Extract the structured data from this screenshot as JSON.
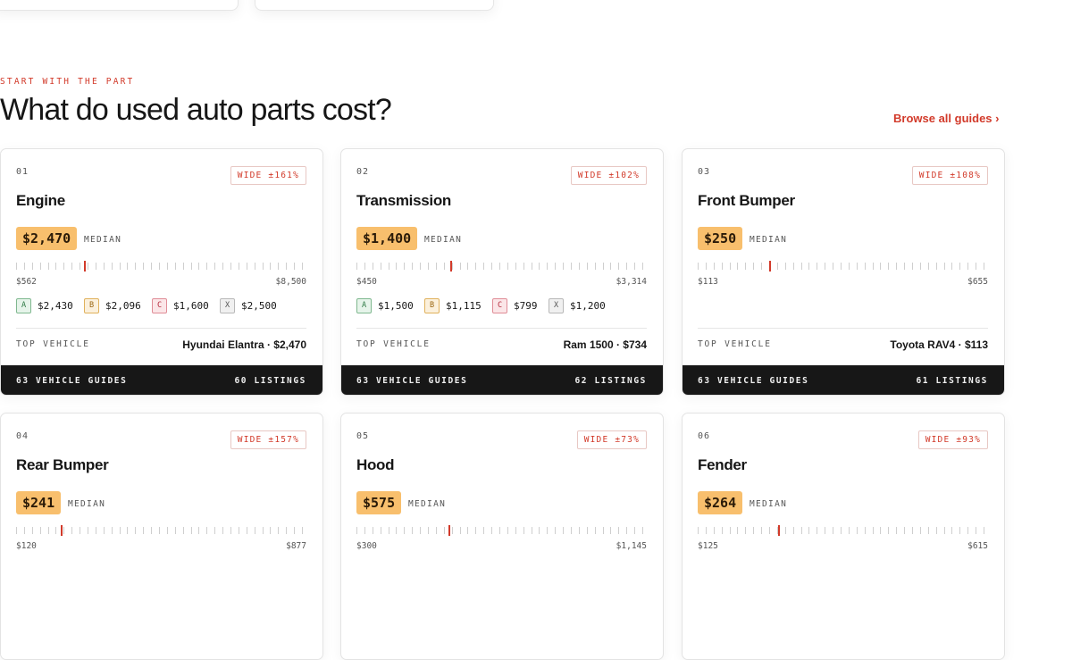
{
  "section": {
    "eyebrow": "START WITH THE PART",
    "title": "What do used auto parts cost?",
    "link": "Browse all guides"
  },
  "cards": [
    {
      "index": "01",
      "name": "Engine",
      "spread": "WIDE ±161%",
      "median": {
        "value": 2470,
        "label": "$2,470"
      },
      "median_label": "MEDIAN",
      "low": {
        "value": 562,
        "label": "$562"
      },
      "high": {
        "value": 8500,
        "label": "$8,500"
      },
      "grades": [
        {
          "grade": "A",
          "price": "$2,430"
        },
        {
          "grade": "B",
          "price": "$2,096"
        },
        {
          "grade": "C",
          "price": "$1,600"
        },
        {
          "grade": "X",
          "price": "$2,500"
        }
      ],
      "top_vehicle_label": "TOP VEHICLE",
      "top_vehicle": "Hyundai Elantra · $2,470",
      "guides": "63 VEHICLE GUIDES",
      "listings": "60 LISTINGS"
    },
    {
      "index": "02",
      "name": "Transmission",
      "spread": "WIDE ±102%",
      "median": {
        "value": 1400,
        "label": "$1,400"
      },
      "median_label": "MEDIAN",
      "low": {
        "value": 450,
        "label": "$450"
      },
      "high": {
        "value": 3314,
        "label": "$3,314"
      },
      "grades": [
        {
          "grade": "A",
          "price": "$1,500"
        },
        {
          "grade": "B",
          "price": "$1,115"
        },
        {
          "grade": "C",
          "price": "$799"
        },
        {
          "grade": "X",
          "price": "$1,200"
        }
      ],
      "top_vehicle_label": "TOP VEHICLE",
      "top_vehicle": "Ram 1500 · $734",
      "guides": "63 VEHICLE GUIDES",
      "listings": "62 LISTINGS"
    },
    {
      "index": "03",
      "name": "Front Bumper",
      "spread": "WIDE ±108%",
      "median": {
        "value": 250,
        "label": "$250"
      },
      "median_label": "MEDIAN",
      "low": {
        "value": 113,
        "label": "$113"
      },
      "high": {
        "value": 655,
        "label": "$655"
      },
      "top_vehicle_label": "TOP VEHICLE",
      "top_vehicle": "Toyota RAV4 · $113",
      "guides": "63 VEHICLE GUIDES",
      "listings": "61 LISTINGS"
    },
    {
      "index": "04",
      "name": "Rear Bumper",
      "spread": "WIDE ±157%",
      "median": {
        "value": 241,
        "label": "$241"
      },
      "median_label": "MEDIAN",
      "low": {
        "value": 120,
        "label": "$120"
      },
      "high": {
        "value": 877,
        "label": "$877"
      }
    },
    {
      "index": "05",
      "name": "Hood",
      "spread": "WIDE ±73%",
      "median": {
        "value": 575,
        "label": "$575"
      },
      "median_label": "MEDIAN",
      "low": {
        "value": 300,
        "label": "$300"
      },
      "high": {
        "value": 1145,
        "label": "$1,145"
      }
    },
    {
      "index": "06",
      "name": "Fender",
      "spread": "WIDE ±93%",
      "median": {
        "value": 264,
        "label": "$264"
      },
      "median_label": "MEDIAN",
      "low": {
        "value": 125,
        "label": "$125"
      },
      "high": {
        "value": 615,
        "label": "$615"
      }
    }
  ]
}
